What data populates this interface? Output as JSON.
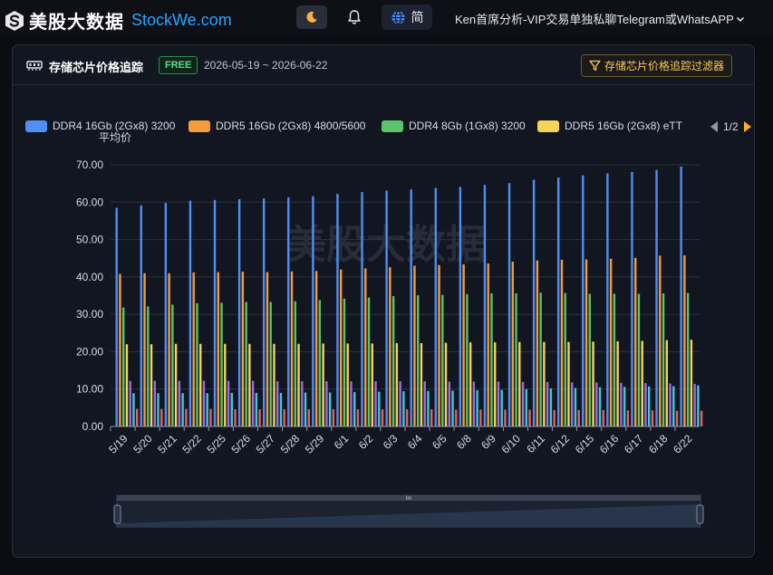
{
  "header": {
    "logo_cn": "美股大数据",
    "logo_en": "StockWe.com",
    "lang_label": "简",
    "user_menu": "Ken首席分析-VIP交易单独私聊Telegram或WhatsAPP",
    "icons": {
      "theme": "moon-icon",
      "bell": "bell-icon",
      "lang": "globe-icon",
      "dropdown": "chevron-down-icon"
    }
  },
  "card": {
    "title": "存储芯片价格追踪",
    "badge": "FREE",
    "date_range": "2026-05-19 ~ 2026-06-22",
    "filter_label": "存储芯片价格追踪过滤器"
  },
  "legend": {
    "page": "1/2",
    "items": [
      {
        "label": "DDR4 16Gb (2Gx8) 3200",
        "label2": "平均价",
        "color": "#4f8ef7"
      },
      {
        "label": "DDR5 16Gb (2Gx8) 4800/5600",
        "label2": "",
        "color": "#f39c3d"
      },
      {
        "label": "DDR4 8Gb (1Gx8) 3200",
        "label2": "",
        "color": "#5cc46a"
      },
      {
        "label": "DDR5 16Gb (2Gx8) eTT",
        "label2": "",
        "color": "#f7d35a"
      }
    ]
  },
  "watermark": "美股大数据",
  "zoom_label": "lin",
  "chart_data": {
    "type": "bar",
    "ylim": [
      0,
      70
    ],
    "yticks": [
      "0.00",
      "10.00",
      "20.00",
      "30.00",
      "40.00",
      "50.00",
      "60.00",
      "70.00"
    ],
    "categories": [
      "5/19",
      "5/20",
      "5/21",
      "5/22",
      "5/25",
      "5/26",
      "5/27",
      "5/28",
      "5/29",
      "6/1",
      "6/2",
      "6/3",
      "6/4",
      "6/5",
      "6/8",
      "6/9",
      "6/10",
      "6/11",
      "6/12",
      "6/15",
      "6/16",
      "6/17",
      "6/18",
      "6/22"
    ],
    "series": [
      {
        "name": "DDR4 16Gb (2Gx8) 3200 平均价",
        "color": "#4f8ef7",
        "values": [
          58.5,
          59.1,
          59.8,
          60.4,
          60.6,
          60.8,
          61.0,
          61.3,
          61.6,
          62.2,
          62.7,
          63.1,
          63.4,
          63.8,
          64.1,
          64.6,
          65.1,
          66.0,
          66.6,
          67.2,
          67.7,
          68.1,
          68.6,
          69.5
        ]
      },
      {
        "name": "DDR5 16Gb (2Gx8) 4800/5600",
        "color": "#f39c3d",
        "values": [
          40.8,
          41.0,
          41.0,
          41.2,
          41.3,
          41.4,
          41.3,
          41.5,
          41.6,
          42.0,
          42.3,
          42.6,
          43.0,
          43.2,
          43.4,
          43.6,
          44.1,
          44.4,
          44.6,
          44.7,
          44.9,
          45.1,
          45.7,
          45.8
        ]
      },
      {
        "name": "DDR4 8Gb (1Gx8) 3200",
        "color": "#5cc46a",
        "values": [
          31.8,
          32.1,
          32.6,
          33.0,
          33.1,
          33.3,
          33.3,
          33.5,
          33.8,
          34.2,
          34.5,
          34.9,
          35.1,
          35.2,
          35.4,
          35.6,
          35.6,
          35.8,
          35.7,
          35.5,
          35.5,
          35.5,
          35.6,
          35.7
        ]
      },
      {
        "name": "DDR5 16Gb (2Gx8) eTT",
        "color": "#f7d35a",
        "values": [
          22.0,
          22.0,
          22.1,
          22.1,
          22.1,
          22.1,
          22.1,
          22.1,
          22.2,
          22.2,
          22.2,
          22.3,
          22.3,
          22.4,
          22.5,
          22.5,
          22.6,
          22.6,
          22.6,
          22.7,
          22.8,
          22.9,
          23.1,
          23.2
        ]
      },
      {
        "name": "",
        "color": "#9b6fe0",
        "values": [
          12.2,
          12.2,
          12.2,
          12.2,
          12.2,
          12.2,
          12.1,
          12.1,
          12.1,
          12.1,
          12.1,
          12.1,
          12.1,
          12.0,
          12.0,
          12.0,
          11.9,
          11.9,
          11.8,
          11.8,
          11.7,
          11.6,
          11.5,
          11.4
        ]
      },
      {
        "name": "",
        "color": "#3fc9d9",
        "values": [
          8.9,
          8.9,
          8.9,
          8.9,
          9.0,
          9.0,
          9.0,
          9.1,
          9.1,
          9.2,
          9.3,
          9.4,
          9.5,
          9.6,
          9.7,
          9.8,
          10.0,
          10.2,
          10.3,
          10.5,
          10.6,
          10.7,
          10.8,
          11.0
        ]
      },
      {
        "name": "",
        "color": "#e86060",
        "values": [
          4.7,
          4.7,
          4.7,
          4.7,
          4.6,
          4.6,
          4.6,
          4.6,
          4.6,
          4.6,
          4.6,
          4.6,
          4.6,
          4.5,
          4.5,
          4.5,
          4.5,
          4.4,
          4.4,
          4.4,
          4.3,
          4.3,
          4.2,
          4.2
        ]
      }
    ]
  }
}
